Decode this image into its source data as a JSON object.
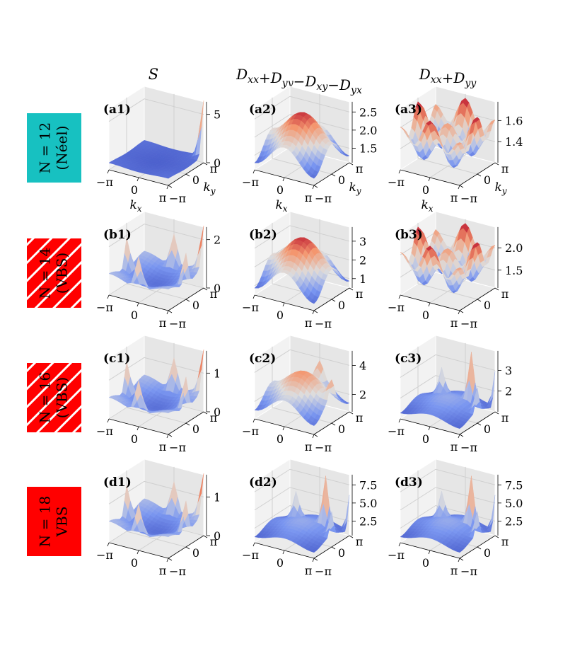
{
  "column_headers": [
    {
      "main": "S",
      "sub": ""
    },
    {
      "main": "D",
      "sub": "xx+D_yy−D_xy−D_yx"
    },
    {
      "main": "D",
      "sub": "xx+D_yy"
    }
  ],
  "row_labels": [
    {
      "line1": "N = 12",
      "line2": "(Néel)",
      "color": "#17c1c1",
      "hatched": false
    },
    {
      "line1": "N = 14",
      "line2": "(VBS)",
      "color": "#ff0000",
      "hatched": true
    },
    {
      "line1": "N = 16",
      "line2": "(VBS)",
      "color": "#ff0000",
      "hatched": true
    },
    {
      "line1": "N = 18",
      "line2": "VBS",
      "color": "#ff0000",
      "hatched": false
    }
  ],
  "axis_ticks": {
    "kx": [
      "−π",
      "0",
      "π"
    ],
    "ky": [
      "−π",
      "0",
      "π"
    ],
    "kx_label": "k_x",
    "ky_label": "k_y"
  },
  "colormap": {
    "low": "#3b4cc0",
    "mid": "#dddddd",
    "high": "#b40426"
  },
  "chart_data": [
    {
      "id": "(a1)",
      "type": "surface",
      "z_ticks": [
        "0",
        "5"
      ],
      "z_range": [
        0,
        6
      ],
      "shape": "corner-peak",
      "xlabel": "k_x",
      "ylabel": "k_y"
    },
    {
      "id": "(a2)",
      "type": "surface",
      "z_ticks": [
        "1.5",
        "2.0",
        "2.5"
      ],
      "z_range": [
        1.1,
        2.7
      ],
      "shape": "dome",
      "xlabel": "k_x",
      "ylabel": "k_y"
    },
    {
      "id": "(a3)",
      "type": "surface",
      "z_ticks": [
        "1.4",
        "1.6"
      ],
      "z_range": [
        1.2,
        1.75
      ],
      "shape": "ripples",
      "xlabel": "k_x",
      "ylabel": "k_y"
    },
    {
      "id": "(b1)",
      "type": "surface",
      "z_ticks": [
        "0",
        "2"
      ],
      "z_range": [
        0,
        2.4
      ],
      "shape": "bowl-peaks",
      "xlabel": "",
      "ylabel": ""
    },
    {
      "id": "(b2)",
      "type": "surface",
      "z_ticks": [
        "1",
        "2",
        "3"
      ],
      "z_range": [
        0.5,
        3.6
      ],
      "shape": "dome",
      "xlabel": "",
      "ylabel": ""
    },
    {
      "id": "(b3)",
      "type": "surface",
      "z_ticks": [
        "1.5",
        "2.0"
      ],
      "z_range": [
        1.1,
        2.4
      ],
      "shape": "ripples",
      "xlabel": "",
      "ylabel": ""
    },
    {
      "id": "(c1)",
      "type": "surface",
      "z_ticks": [
        "0",
        "1"
      ],
      "z_range": [
        0,
        1.5
      ],
      "shape": "bowl-peaks",
      "xlabel": "",
      "ylabel": ""
    },
    {
      "id": "(c2)",
      "type": "surface",
      "z_ticks": [
        "2",
        "4"
      ],
      "z_range": [
        0.8,
        4.8
      ],
      "shape": "dome-peaks",
      "xlabel": "",
      "ylabel": ""
    },
    {
      "id": "(c3)",
      "type": "surface",
      "z_ticks": [
        "2",
        "3"
      ],
      "z_range": [
        1.0,
        3.8
      ],
      "shape": "spikes",
      "xlabel": "",
      "ylabel": ""
    },
    {
      "id": "(d1)",
      "type": "surface",
      "z_ticks": [
        "0",
        "1"
      ],
      "z_range": [
        0,
        1.5
      ],
      "shape": "bowl-peaks",
      "xlabel": "",
      "ylabel": ""
    },
    {
      "id": "(d2)",
      "type": "surface",
      "z_ticks": [
        "2.5",
        "5.0",
        "7.5"
      ],
      "z_range": [
        0.5,
        8.5
      ],
      "shape": "spikes",
      "xlabel": "",
      "ylabel": ""
    },
    {
      "id": "(d3)",
      "type": "surface",
      "z_ticks": [
        "2.5",
        "5.0",
        "7.5"
      ],
      "z_range": [
        0.5,
        8.5
      ],
      "shape": "spikes",
      "xlabel": "",
      "ylabel": ""
    }
  ]
}
